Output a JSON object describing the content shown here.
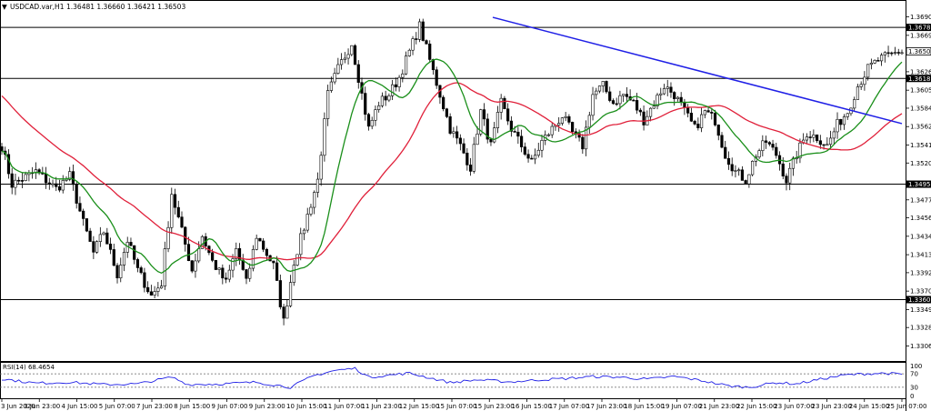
{
  "window": {
    "menu_icon": "triangle-down-icon",
    "symbol": "USDCAD.var,H1",
    "ohlc": "1.36481 1.36660 1.36421 1.36503"
  },
  "chart_data": {
    "type": "candlestick",
    "symbol": "USDCAD.var",
    "timeframe": "H1",
    "ylim": [
      1.329,
      1.3706
    ],
    "price_ticks": [
      "1.36905",
      "1.36690",
      "1.36265",
      "1.36050",
      "1.35840",
      "1.35625",
      "1.35410",
      "1.35200",
      "1.34770",
      "1.34560",
      "1.34345",
      "1.34130",
      "1.33920",
      "1.33705",
      "1.33490",
      "1.33280",
      "1.33065"
    ],
    "time_labels": [
      "3 Jun 2020",
      "3 Jun 23:00",
      "4 Jun 15:00",
      "5 Jun 07:00",
      "7 Jun 23:00",
      "8 Jun 15:00",
      "9 Jun 07:00",
      "9 Jun 23:00",
      "10 Jun 15:00",
      "11 Jun 07:00",
      "11 Jun 23:00",
      "12 Jun 15:00",
      "15 Jun 07:00",
      "15 Jun 23:00",
      "16 Jun 15:00",
      "17 Jun 07:00",
      "17 Jun 23:00",
      "18 Jun 15:00",
      "19 Jun 07:00",
      "21 Jun 23:00",
      "22 Jun 15:00",
      "23 Jun 07:00",
      "23 Jun 23:00",
      "24 Jun 15:00",
      "25 Jun 07:00"
    ],
    "horizontal_levels": [
      "1.36783",
      "1.36187",
      "1.34953",
      "1.33606"
    ],
    "current_price": "1.36503",
    "trendline": {
      "from": [
        15,
        1.369
      ],
      "to": [
        25,
        1.3566
      ],
      "color": "#1f1fe6"
    },
    "close_anchors": [
      [
        0,
        1.354
      ],
      [
        3,
        1.3495
      ],
      [
        10,
        1.351
      ],
      [
        16,
        1.349
      ],
      [
        20,
        1.3505
      ],
      [
        24,
        1.345
      ],
      [
        27,
        1.3415
      ],
      [
        30,
        1.344
      ],
      [
        34,
        1.339
      ],
      [
        37,
        1.343
      ],
      [
        40,
        1.3395
      ],
      [
        44,
        1.3365
      ],
      [
        47,
        1.338
      ],
      [
        50,
        1.3485
      ],
      [
        53,
        1.344
      ],
      [
        56,
        1.3395
      ],
      [
        59,
        1.3435
      ],
      [
        62,
        1.3405
      ],
      [
        66,
        1.338
      ],
      [
        69,
        1.342
      ],
      [
        72,
        1.338
      ],
      [
        75,
        1.3435
      ],
      [
        80,
        1.34
      ],
      [
        83,
        1.3335
      ],
      [
        86,
        1.3405
      ],
      [
        89,
        1.3445
      ],
      [
        93,
        1.35
      ],
      [
        96,
        1.36
      ],
      [
        99,
        1.363
      ],
      [
        103,
        1.366
      ],
      [
        105,
        1.362
      ],
      [
        108,
        1.356
      ],
      [
        111,
        1.359
      ],
      [
        114,
        1.36
      ],
      [
        117,
        1.362
      ],
      [
        120,
        1.365
      ],
      [
        123,
        1.368
      ],
      [
        126,
        1.364
      ],
      [
        129,
        1.36
      ],
      [
        132,
        1.356
      ],
      [
        135,
        1.354
      ],
      [
        138,
        1.3515
      ],
      [
        141,
        1.358
      ],
      [
        144,
        1.354
      ],
      [
        147,
        1.359
      ],
      [
        150,
        1.356
      ],
      [
        153,
        1.354
      ],
      [
        156,
        1.352
      ],
      [
        159,
        1.3545
      ],
      [
        162,
        1.356
      ],
      [
        165,
        1.3575
      ],
      [
        168,
        1.3555
      ],
      [
        171,
        1.354
      ],
      [
        174,
        1.36
      ],
      [
        177,
        1.361
      ],
      [
        180,
        1.359
      ],
      [
        183,
        1.36
      ],
      [
        186,
        1.359
      ],
      [
        189,
        1.357
      ],
      [
        192,
        1.359
      ],
      [
        195,
        1.361
      ],
      [
        198,
        1.36
      ],
      [
        201,
        1.358
      ],
      [
        204,
        1.356
      ],
      [
        207,
        1.358
      ],
      [
        210,
        1.357
      ],
      [
        213,
        1.353
      ],
      [
        216,
        1.351
      ],
      [
        219,
        1.35
      ],
      [
        222,
        1.353
      ],
      [
        225,
        1.3545
      ],
      [
        228,
        1.353
      ],
      [
        231,
        1.35
      ],
      [
        234,
        1.353
      ],
      [
        237,
        1.3555
      ],
      [
        240,
        1.355
      ],
      [
        243,
        1.354
      ],
      [
        246,
        1.3565
      ],
      [
        249,
        1.358
      ],
      [
        252,
        1.361
      ],
      [
        255,
        1.363
      ],
      [
        258,
        1.364
      ],
      [
        261,
        1.3645
      ],
      [
        264,
        1.365
      ]
    ],
    "ma_fast_color": "#1a8f1a",
    "ma_slow_color": "#e0203a",
    "candle_color": "#000000",
    "rsi": {
      "label": "RSI(14) 68.4654",
      "levels": [
        "100",
        "70",
        "30",
        "0"
      ],
      "last": 68.4654,
      "line_color": "#1f1fe6",
      "anchors": [
        [
          0,
          55
        ],
        [
          10,
          42
        ],
        [
          20,
          45
        ],
        [
          30,
          38
        ],
        [
          40,
          40
        ],
        [
          50,
          60
        ],
        [
          55,
          38
        ],
        [
          65,
          40
        ],
        [
          75,
          45
        ],
        [
          85,
          30
        ],
        [
          92,
          65
        ],
        [
          98,
          80
        ],
        [
          104,
          86
        ],
        [
          108,
          60
        ],
        [
          114,
          66
        ],
        [
          120,
          72
        ],
        [
          126,
          58
        ],
        [
          132,
          44
        ],
        [
          140,
          52
        ],
        [
          150,
          46
        ],
        [
          158,
          52
        ],
        [
          166,
          56
        ],
        [
          174,
          62
        ],
        [
          182,
          60
        ],
        [
          190,
          54
        ],
        [
          198,
          62
        ],
        [
          206,
          50
        ],
        [
          214,
          34
        ],
        [
          220,
          30
        ],
        [
          228,
          44
        ],
        [
          234,
          40
        ],
        [
          242,
          56
        ],
        [
          248,
          66
        ],
        [
          254,
          70
        ],
        [
          260,
          72
        ],
        [
          264,
          68.5
        ]
      ]
    }
  }
}
